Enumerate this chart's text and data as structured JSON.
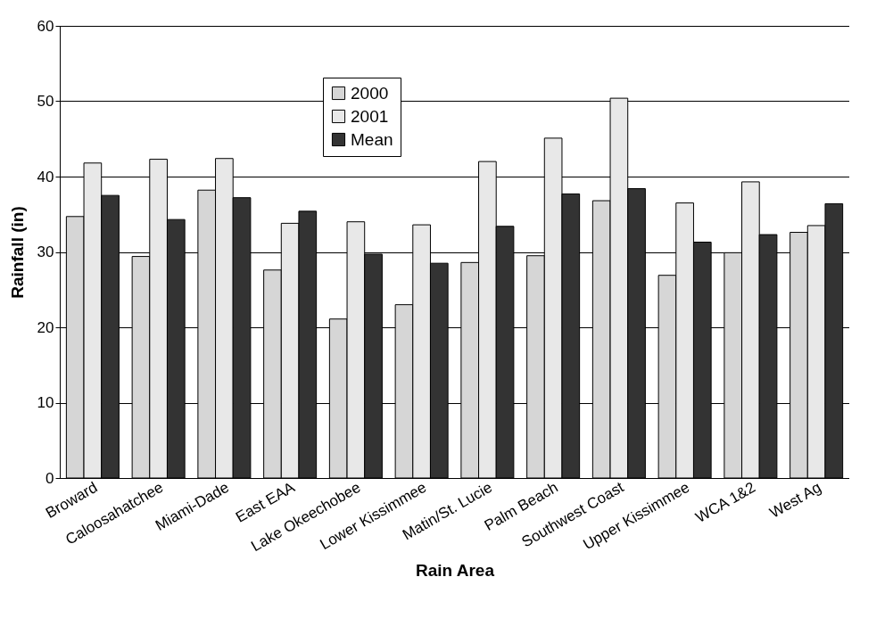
{
  "chart_data": {
    "type": "bar",
    "xlabel": "Rain Area",
    "ylabel": "Rainfall (in)",
    "categories": [
      "Broward",
      "Caloosahatchee",
      "Miami-Dade",
      "East EAA",
      "Lake Okeechobee",
      "Lower Kissimmee",
      "Matin/St. Lucie",
      "Palm Beach",
      "Southwest Coast",
      "Upper Kissimmee",
      "WCA 1&2",
      "West Ag"
    ],
    "series": [
      {
        "name": "2000",
        "color": "#d6d6d6",
        "values": [
          34.7,
          29.4,
          38.2,
          27.6,
          21.1,
          23.0,
          28.6,
          29.5,
          36.8,
          26.9,
          29.9,
          32.6
        ]
      },
      {
        "name": "2001",
        "color": "#e8e8e8",
        "values": [
          41.8,
          42.3,
          42.4,
          33.8,
          34.0,
          33.6,
          42.0,
          45.1,
          50.4,
          36.5,
          39.3,
          33.5
        ]
      },
      {
        "name": "Mean",
        "color": "#333333",
        "values": [
          37.5,
          34.3,
          37.2,
          35.4,
          29.7,
          28.5,
          33.4,
          37.7,
          38.4,
          31.3,
          32.3,
          36.4
        ]
      }
    ],
    "ylim": [
      0,
      60
    ],
    "yticks": [
      0,
      10,
      20,
      30,
      40,
      50,
      60
    ],
    "grid": "y",
    "legend": "top"
  }
}
